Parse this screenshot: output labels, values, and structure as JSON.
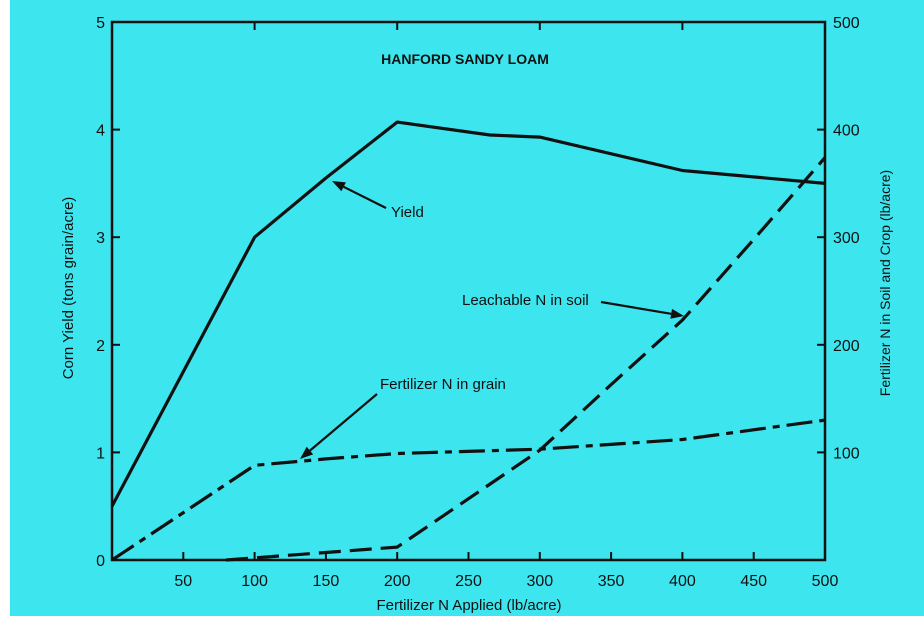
{
  "colors": {
    "background": "#3de6ef",
    "page": "#ffffff",
    "ink": "#111111"
  },
  "chart_data": {
    "type": "line",
    "title": "HANFORD SANDY LOAM",
    "xlabel": "Fertilizer N Applied (lb/acre)",
    "ylabel": "Corn Yield (tons grain/acre)",
    "y2label": "Fertilizer N in Soil and Crop (lb/acre)",
    "xlim": [
      0,
      500
    ],
    "ylim": [
      0,
      5
    ],
    "y2lim": [
      0,
      500
    ],
    "x_ticks": [
      50,
      100,
      150,
      200,
      250,
      300,
      350,
      400,
      450,
      500
    ],
    "y_ticks": [
      0,
      1,
      2,
      3,
      4,
      5
    ],
    "y2_ticks": [
      100,
      200,
      300,
      400,
      500
    ],
    "grid": false,
    "legend": "none",
    "series": [
      {
        "name": "Yield",
        "axis": "left",
        "line_style": "solid",
        "x": [
          0,
          100,
          150,
          200,
          265,
          300,
          400,
          500
        ],
        "y": [
          0.5,
          3.0,
          3.55,
          4.07,
          3.95,
          3.93,
          3.62,
          3.5
        ]
      },
      {
        "name": "Fertilizer N in grain",
        "axis": "right",
        "line_style": "dash-dot",
        "x": [
          0,
          100,
          150,
          200,
          300,
          400,
          500
        ],
        "y": [
          0,
          88,
          94,
          99,
          103,
          112,
          130
        ]
      },
      {
        "name": "Leachable N in soil",
        "axis": "right",
        "line_style": "dashed",
        "x": [
          80,
          200,
          250,
          300,
          350,
          400,
          450,
          500
        ],
        "y": [
          0,
          12,
          57,
          102,
          163,
          223,
          298,
          374
        ]
      }
    ]
  }
}
